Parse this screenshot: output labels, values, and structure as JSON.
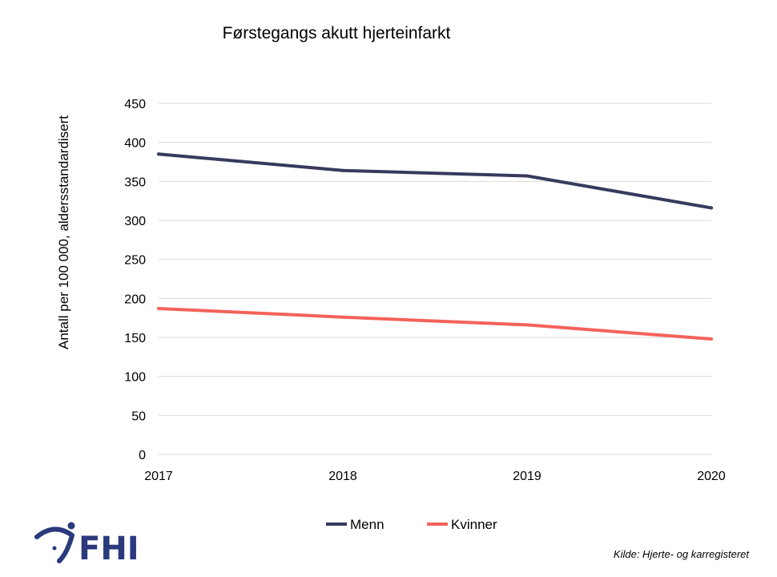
{
  "chart_data": {
    "type": "line",
    "title": "Førstegangs akutt hjerteinfarkt",
    "ylabel": "Antall per 100 000,  aldersstandardisert",
    "xlabel": "",
    "x": [
      "2017",
      "2018",
      "2019",
      "2020"
    ],
    "ylim": [
      0,
      450
    ],
    "yticks": [
      0,
      50,
      100,
      150,
      200,
      250,
      300,
      350,
      400,
      450
    ],
    "grid": true,
    "legend_position": "bottom",
    "series": [
      {
        "name": "Menn",
        "color": "#363a5e",
        "values": [
          385,
          364,
          357,
          316
        ]
      },
      {
        "name": "Kvinner",
        "color": "#f4625b",
        "values": [
          187,
          176,
          166,
          148
        ]
      }
    ]
  },
  "logo": {
    "text": "FHI",
    "color": "#2a3a7c"
  },
  "source": "Kilde: Hjerte- og karregisteret"
}
